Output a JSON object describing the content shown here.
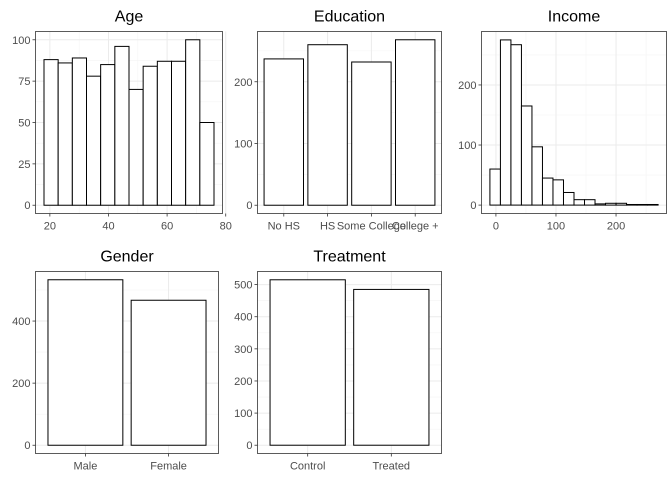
{
  "chart_data": [
    {
      "id": "age",
      "type": "bar",
      "variant": "histogram",
      "title": "Age",
      "xlabel": "",
      "ylabel": "",
      "bins": [
        {
          "x0": 18,
          "x1": 22.83,
          "value": 88
        },
        {
          "x0": 22.83,
          "x1": 27.67,
          "value": 86
        },
        {
          "x0": 27.67,
          "x1": 32.5,
          "value": 89
        },
        {
          "x0": 32.5,
          "x1": 37.33,
          "value": 78
        },
        {
          "x0": 37.33,
          "x1": 42.17,
          "value": 85
        },
        {
          "x0": 42.17,
          "x1": 47,
          "value": 96
        },
        {
          "x0": 47,
          "x1": 51.83,
          "value": 70
        },
        {
          "x0": 51.83,
          "x1": 56.67,
          "value": 84
        },
        {
          "x0": 56.67,
          "x1": 61.5,
          "value": 87
        },
        {
          "x0": 61.5,
          "x1": 66.33,
          "value": 87
        },
        {
          "x0": 66.33,
          "x1": 71.17,
          "value": 100
        },
        {
          "x0": 71.17,
          "x1": 76,
          "value": 50
        }
      ],
      "xlim": [
        15.1,
        78.9
      ],
      "ylim": [
        -5,
        105
      ],
      "xticks": [
        20,
        40,
        60,
        80
      ],
      "yticks": [
        0,
        25,
        50,
        75,
        100
      ],
      "grid": true,
      "legend": "none"
    },
    {
      "id": "education",
      "type": "bar",
      "title": "Education",
      "xlabel": "",
      "ylabel": "",
      "categories": [
        "No HS",
        "HS",
        "Some College",
        "College +"
      ],
      "values": [
        237,
        260,
        232,
        268
      ],
      "ylim": [
        -13.4,
        281.4
      ],
      "yticks": [
        0,
        100,
        200
      ],
      "grid": true,
      "legend": "none"
    },
    {
      "id": "income",
      "type": "bar",
      "variant": "histogram",
      "title": "Income",
      "xlabel": "",
      "ylabel": "",
      "bins": [
        {
          "x0": -10,
          "x1": 7.5,
          "value": 60
        },
        {
          "x0": 7.5,
          "x1": 25,
          "value": 275
        },
        {
          "x0": 25,
          "x1": 42.5,
          "value": 267
        },
        {
          "x0": 42.5,
          "x1": 60,
          "value": 165
        },
        {
          "x0": 60,
          "x1": 77.5,
          "value": 97
        },
        {
          "x0": 77.5,
          "x1": 95,
          "value": 45
        },
        {
          "x0": 95,
          "x1": 112.5,
          "value": 42
        },
        {
          "x0": 112.5,
          "x1": 130,
          "value": 21
        },
        {
          "x0": 130,
          "x1": 147.5,
          "value": 9
        },
        {
          "x0": 147.5,
          "x1": 165,
          "value": 9
        },
        {
          "x0": 165,
          "x1": 182.5,
          "value": 2
        },
        {
          "x0": 182.5,
          "x1": 200,
          "value": 3
        },
        {
          "x0": 200,
          "x1": 217.5,
          "value": 3
        },
        {
          "x0": 217.5,
          "x1": 235,
          "value": 1
        },
        {
          "x0": 235,
          "x1": 252.5,
          "value": 1
        },
        {
          "x0": 252.5,
          "x1": 270,
          "value": 1
        }
      ],
      "xlim": [
        -24,
        284
      ],
      "ylim": [
        -14,
        289
      ],
      "xticks": [
        0,
        100,
        200
      ],
      "yticks": [
        0,
        100,
        200
      ],
      "grid": true,
      "legend": "none"
    },
    {
      "id": "gender",
      "type": "bar",
      "title": "Gender",
      "xlabel": "",
      "ylabel": "",
      "categories": [
        "Male",
        "Female"
      ],
      "values": [
        533,
        467
      ],
      "ylim": [
        -26.6,
        559.6
      ],
      "yticks": [
        0,
        200,
        400
      ],
      "grid": true,
      "legend": "none"
    },
    {
      "id": "treatment",
      "type": "bar",
      "title": "Treatment",
      "xlabel": "",
      "ylabel": "",
      "categories": [
        "Control",
        "Treated"
      ],
      "values": [
        515,
        485
      ],
      "ylim": [
        -25.8,
        540.8
      ],
      "yticks": [
        0,
        100,
        200,
        300,
        400,
        500
      ],
      "grid": true,
      "legend": "none"
    }
  ]
}
